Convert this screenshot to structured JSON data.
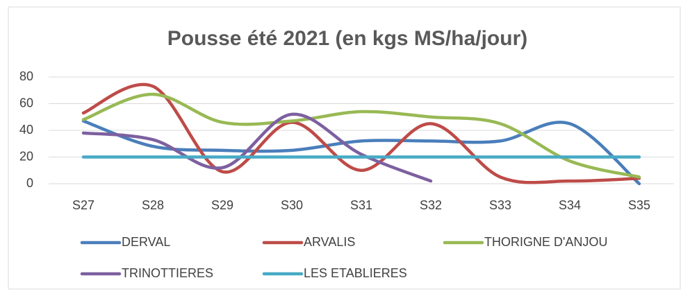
{
  "chart_data": {
    "type": "line",
    "title": "Pousse été 2021 (en kgs MS/ha/jour)",
    "categories": [
      "S27",
      "S28",
      "S29",
      "S30",
      "S31",
      "S32",
      "S33",
      "S34",
      "S35"
    ],
    "series": [
      {
        "name": "DERVAL",
        "color": "#4a7ebb",
        "values": [
          47,
          28,
          25,
          25,
          32,
          32,
          32,
          45,
          0
        ]
      },
      {
        "name": "ARVALIS",
        "color": "#be4b48",
        "values": [
          53,
          73,
          9,
          46,
          10,
          45,
          5,
          2,
          4
        ]
      },
      {
        "name": "THORIGNE D'ANJOU",
        "color": "#98b954",
        "values": [
          48,
          67,
          46,
          47,
          54,
          50,
          45,
          17,
          5
        ]
      },
      {
        "name": "TRINOTTIERES",
        "color": "#7d60a0",
        "values": [
          38,
          33,
          12,
          52,
          22,
          2,
          null,
          null,
          null
        ]
      },
      {
        "name": "LES ETABLIERES",
        "color": "#46aac5",
        "values": [
          20,
          20,
          20,
          20,
          20,
          20,
          20,
          20,
          20
        ]
      }
    ],
    "ylim": [
      0,
      80
    ],
    "yticks": [
      0,
      20,
      40,
      60,
      80
    ],
    "grid": true,
    "smooth": true,
    "legend": "bottom"
  }
}
